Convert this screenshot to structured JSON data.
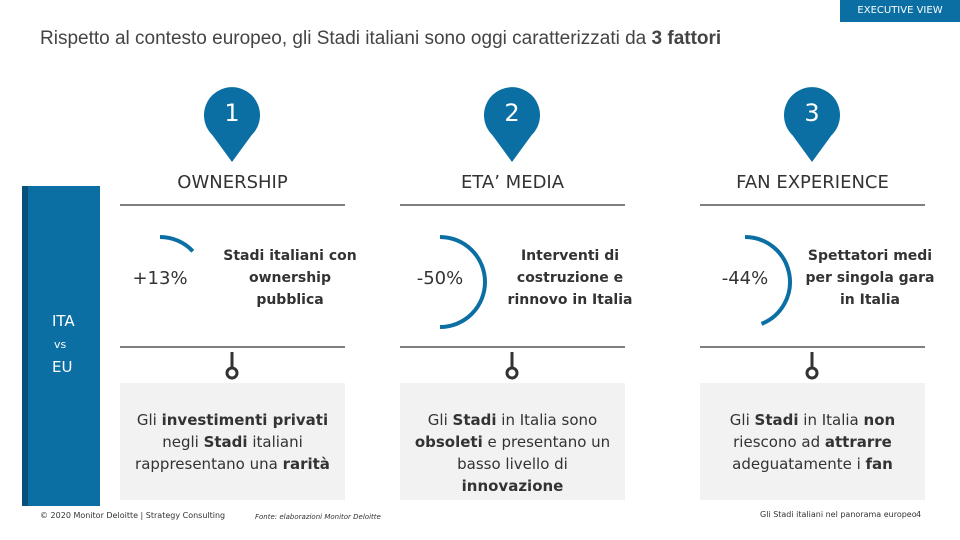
{
  "header": {
    "tag": "EXECUTIVE VIEW",
    "title": [
      {
        "text": "Rispetto al contesto europeo, gli Stadi italiani sono oggi caratterizzati da ",
        "bold": false
      },
      {
        "text": "3 fattori",
        "bold": true
      }
    ]
  },
  "side_label": [
    "ITA",
    "vs",
    "EU"
  ],
  "factors": [
    {
      "number": "1",
      "heading": "OWNERSHIP",
      "stat": {
        "value": 13,
        "label": "+13%"
      },
      "stat_text": "Stadi italiani con ownership pubblica",
      "conclusion": [
        {
          "text": "Gli ",
          "bold": false
        },
        {
          "text": "investimenti privati",
          "bold": true
        },
        {
          "text": " negli ",
          "bold": false
        },
        {
          "text": "Stadi",
          "bold": true
        },
        {
          "text": " italiani rappresentano una ",
          "bold": false
        },
        {
          "text": "rarità",
          "bold": true
        }
      ]
    },
    {
      "number": "2",
      "heading": "ETA’ MEDIA",
      "stat": {
        "value": -50,
        "label": "-50%"
      },
      "stat_text": "Interventi di costruzione e rinnovo in Italia",
      "conclusion": [
        {
          "text": "Gli ",
          "bold": false
        },
        {
          "text": "Stadi",
          "bold": true
        },
        {
          "text": " in Italia sono ",
          "bold": false
        },
        {
          "text": "obsoleti",
          "bold": true
        },
        {
          "text": " e presentano un basso livello di ",
          "bold": false
        },
        {
          "text": "innovazione",
          "bold": true
        }
      ]
    },
    {
      "number": "3",
      "heading": "FAN EXPERIENCE",
      "stat": {
        "value": -44,
        "label": "-44%"
      },
      "stat_text": "Spettatori medi per singola gara in Italia",
      "conclusion": [
        {
          "text": "Gli ",
          "bold": false
        },
        {
          "text": "Stadi",
          "bold": true
        },
        {
          "text": " in Italia ",
          "bold": false
        },
        {
          "text": "non",
          "bold": true
        },
        {
          "text": " riescono ad ",
          "bold": false
        },
        {
          "text": "attrarre",
          "bold": true
        },
        {
          "text": " adeguatamente i ",
          "bold": false
        },
        {
          "text": "fan",
          "bold": true
        }
      ]
    }
  ],
  "footer": {
    "copyright": "© 2020 Monitor Deloitte | Strategy Consulting",
    "source": "Fonte: elaborazioni Monitor Deloitte",
    "doc_title": "Gli Stadi italiani nel panorama europeo",
    "page": "4"
  }
}
